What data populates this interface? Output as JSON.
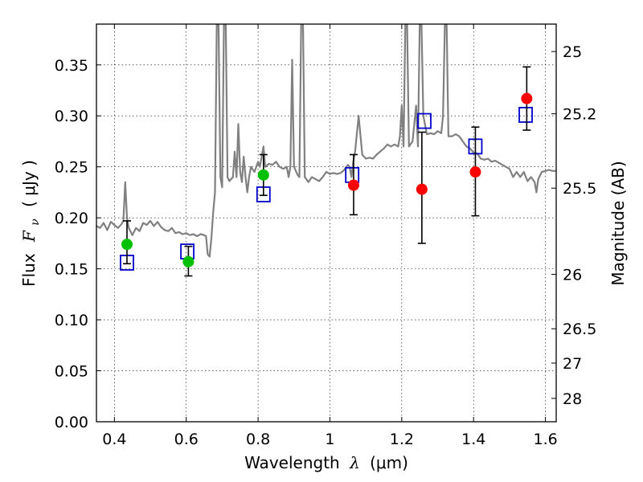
{
  "chart_data": {
    "type": "scatter",
    "xlabel": {
      "prefix": "Wavelength",
      "symbol": "λ",
      "unit": "(μm)"
    },
    "ylabel": {
      "prefix": "Flux",
      "symbol": "F",
      "subscript": "ν",
      "unit": "( μJy )"
    },
    "ylabel_right": "Magnitude (AB)",
    "xlim": [
      0.35,
      1.63
    ],
    "ylim": [
      0.0,
      0.39
    ],
    "grid": true,
    "x_ticks": [
      {
        "value": 0.4,
        "label": "0.4"
      },
      {
        "value": 0.6,
        "label": "0.6"
      },
      {
        "value": 0.8,
        "label": "0.8"
      },
      {
        "value": 1.0,
        "label": "1"
      },
      {
        "value": 1.2,
        "label": "1.2"
      },
      {
        "value": 1.4,
        "label": "1.4"
      },
      {
        "value": 1.6,
        "label": "1.6"
      }
    ],
    "y_ticks": [
      {
        "value": 0.0,
        "label": "0.00"
      },
      {
        "value": 0.05,
        "label": "0.05"
      },
      {
        "value": 0.1,
        "label": "0.10"
      },
      {
        "value": 0.15,
        "label": "0.15"
      },
      {
        "value": 0.2,
        "label": "0.20"
      },
      {
        "value": 0.25,
        "label": "0.25"
      },
      {
        "value": 0.3,
        "label": "0.30"
      },
      {
        "value": 0.35,
        "label": "0.35"
      }
    ],
    "right_ticks": [
      {
        "mag": 25.0,
        "label": "25"
      },
      {
        "mag": 25.2,
        "label": "25.2"
      },
      {
        "mag": 25.5,
        "label": "25.5"
      },
      {
        "mag": 26.0,
        "label": "26"
      },
      {
        "mag": 26.5,
        "label": "26.5"
      },
      {
        "mag": 27.0,
        "label": "27"
      },
      {
        "mag": 28.0,
        "label": "28"
      }
    ],
    "colors": {
      "model_line": "#808080",
      "green": "#00c000",
      "red": "#ff0000",
      "model_box": "#0000cc",
      "errorbar": "#000000"
    },
    "model_spectrum": [
      [
        0.35,
        0.192
      ],
      [
        0.36,
        0.19
      ],
      [
        0.37,
        0.195
      ],
      [
        0.38,
        0.188
      ],
      [
        0.39,
        0.196
      ],
      [
        0.4,
        0.193
      ],
      [
        0.41,
        0.19
      ],
      [
        0.42,
        0.194
      ],
      [
        0.425,
        0.197
      ],
      [
        0.43,
        0.235
      ],
      [
        0.435,
        0.2
      ],
      [
        0.44,
        0.19
      ],
      [
        0.45,
        0.183
      ],
      [
        0.46,
        0.19
      ],
      [
        0.47,
        0.187
      ],
      [
        0.48,
        0.195
      ],
      [
        0.49,
        0.193
      ],
      [
        0.5,
        0.197
      ],
      [
        0.51,
        0.192
      ],
      [
        0.52,
        0.196
      ],
      [
        0.53,
        0.191
      ],
      [
        0.54,
        0.188
      ],
      [
        0.55,
        0.187
      ],
      [
        0.56,
        0.19
      ],
      [
        0.57,
        0.185
      ],
      [
        0.58,
        0.186
      ],
      [
        0.59,
        0.184
      ],
      [
        0.6,
        0.185
      ],
      [
        0.61,
        0.183
      ],
      [
        0.62,
        0.184
      ],
      [
        0.63,
        0.182
      ],
      [
        0.64,
        0.184
      ],
      [
        0.65,
        0.183
      ],
      [
        0.655,
        0.182
      ],
      [
        0.66,
        0.164
      ],
      [
        0.665,
        0.162
      ],
      [
        0.67,
        0.18
      ],
      [
        0.675,
        0.205
      ],
      [
        0.68,
        0.225
      ],
      [
        0.685,
        0.39
      ],
      [
        0.69,
        0.39
      ],
      [
        0.695,
        0.24
      ],
      [
        0.7,
        0.23
      ],
      [
        0.705,
        0.39
      ],
      [
        0.71,
        0.39
      ],
      [
        0.715,
        0.24
      ],
      [
        0.72,
        0.236
      ],
      [
        0.73,
        0.24
      ],
      [
        0.735,
        0.265
      ],
      [
        0.74,
        0.24
      ],
      [
        0.745,
        0.292
      ],
      [
        0.75,
        0.245
      ],
      [
        0.755,
        0.235
      ],
      [
        0.76,
        0.26
      ],
      [
        0.765,
        0.24
      ],
      [
        0.77,
        0.225
      ],
      [
        0.775,
        0.24
      ],
      [
        0.78,
        0.25
      ],
      [
        0.79,
        0.245
      ],
      [
        0.8,
        0.255
      ],
      [
        0.805,
        0.25
      ],
      [
        0.81,
        0.26
      ],
      [
        0.815,
        0.27
      ],
      [
        0.82,
        0.25
      ],
      [
        0.83,
        0.253
      ],
      [
        0.84,
        0.252
      ],
      [
        0.85,
        0.255
      ],
      [
        0.86,
        0.25
      ],
      [
        0.87,
        0.248
      ],
      [
        0.88,
        0.25
      ],
      [
        0.885,
        0.24
      ],
      [
        0.89,
        0.25
      ],
      [
        0.895,
        0.355
      ],
      [
        0.9,
        0.25
      ],
      [
        0.91,
        0.242
      ],
      [
        0.915,
        0.24
      ],
      [
        0.92,
        0.39
      ],
      [
        0.925,
        0.39
      ],
      [
        0.93,
        0.24
      ],
      [
        0.94,
        0.235
      ],
      [
        0.95,
        0.24
      ],
      [
        0.96,
        0.238
      ],
      [
        0.97,
        0.236
      ],
      [
        0.98,
        0.24
      ],
      [
        0.99,
        0.245
      ],
      [
        1.0,
        0.243
      ],
      [
        1.01,
        0.244
      ],
      [
        1.02,
        0.243
      ],
      [
        1.03,
        0.244
      ],
      [
        1.04,
        0.247
      ],
      [
        1.05,
        0.252
      ],
      [
        1.055,
        0.25
      ],
      [
        1.06,
        0.24
      ],
      [
        1.065,
        0.255
      ],
      [
        1.07,
        0.265
      ],
      [
        1.08,
        0.3
      ],
      [
        1.09,
        0.262
      ],
      [
        1.1,
        0.258
      ],
      [
        1.11,
        0.259
      ],
      [
        1.12,
        0.258
      ],
      [
        1.13,
        0.262
      ],
      [
        1.14,
        0.265
      ],
      [
        1.15,
        0.268
      ],
      [
        1.16,
        0.272
      ],
      [
        1.17,
        0.27
      ],
      [
        1.18,
        0.272
      ],
      [
        1.19,
        0.27
      ],
      [
        1.195,
        0.28
      ],
      [
        1.2,
        0.31
      ],
      [
        1.205,
        0.27
      ],
      [
        1.21,
        0.39
      ],
      [
        1.215,
        0.39
      ],
      [
        1.22,
        0.27
      ],
      [
        1.23,
        0.275
      ],
      [
        1.24,
        0.31
      ],
      [
        1.245,
        0.27
      ],
      [
        1.25,
        0.39
      ],
      [
        1.255,
        0.39
      ],
      [
        1.26,
        0.3
      ],
      [
        1.27,
        0.282
      ],
      [
        1.28,
        0.283
      ],
      [
        1.29,
        0.282
      ],
      [
        1.3,
        0.285
      ],
      [
        1.31,
        0.283
      ],
      [
        1.315,
        0.3
      ],
      [
        1.32,
        0.39
      ],
      [
        1.325,
        0.39
      ],
      [
        1.33,
        0.28
      ],
      [
        1.34,
        0.28
      ],
      [
        1.35,
        0.282
      ],
      [
        1.36,
        0.28
      ],
      [
        1.37,
        0.275
      ],
      [
        1.38,
        0.27
      ],
      [
        1.39,
        0.268
      ],
      [
        1.4,
        0.264
      ],
      [
        1.41,
        0.263
      ],
      [
        1.42,
        0.258
      ],
      [
        1.43,
        0.257
      ],
      [
        1.44,
        0.258
      ],
      [
        1.45,
        0.255
      ],
      [
        1.46,
        0.256
      ],
      [
        1.47,
        0.254
      ],
      [
        1.48,
        0.252
      ],
      [
        1.49,
        0.25
      ],
      [
        1.5,
        0.248
      ],
      [
        1.51,
        0.24
      ],
      [
        1.52,
        0.245
      ],
      [
        1.53,
        0.24
      ],
      [
        1.54,
        0.245
      ],
      [
        1.55,
        0.236
      ],
      [
        1.56,
        0.24
      ],
      [
        1.57,
        0.235
      ],
      [
        1.575,
        0.225
      ],
      [
        1.58,
        0.238
      ],
      [
        1.59,
        0.245
      ],
      [
        1.6,
        0.246
      ],
      [
        1.61,
        0.247
      ],
      [
        1.62,
        0.246
      ],
      [
        1.63,
        0.246
      ]
    ],
    "model_boxes": [
      {
        "x": 0.435,
        "y": 0.156
      },
      {
        "x": 0.603,
        "y": 0.167
      },
      {
        "x": 0.815,
        "y": 0.223
      },
      {
        "x": 1.062,
        "y": 0.242
      },
      {
        "x": 1.263,
        "y": 0.295
      },
      {
        "x": 1.405,
        "y": 0.27
      },
      {
        "x": 1.545,
        "y": 0.301
      }
    ],
    "green_points": [
      {
        "x": 0.435,
        "y": 0.174,
        "err_low": 0.155,
        "err_high": 0.197
      },
      {
        "x": 0.606,
        "y": 0.157,
        "err_low": 0.143,
        "err_high": 0.172
      },
      {
        "x": 0.815,
        "y": 0.242,
        "err_low": 0.222,
        "err_high": 0.262
      }
    ],
    "red_points": [
      {
        "x": 1.066,
        "y": 0.232,
        "err_low": 0.203,
        "err_high": 0.262
      },
      {
        "x": 1.256,
        "y": 0.228,
        "err_low": 0.175,
        "err_high": 0.284
      },
      {
        "x": 1.405,
        "y": 0.245,
        "err_low": 0.202,
        "err_high": 0.289
      },
      {
        "x": 1.548,
        "y": 0.317,
        "err_low": 0.286,
        "err_high": 0.348
      }
    ]
  }
}
